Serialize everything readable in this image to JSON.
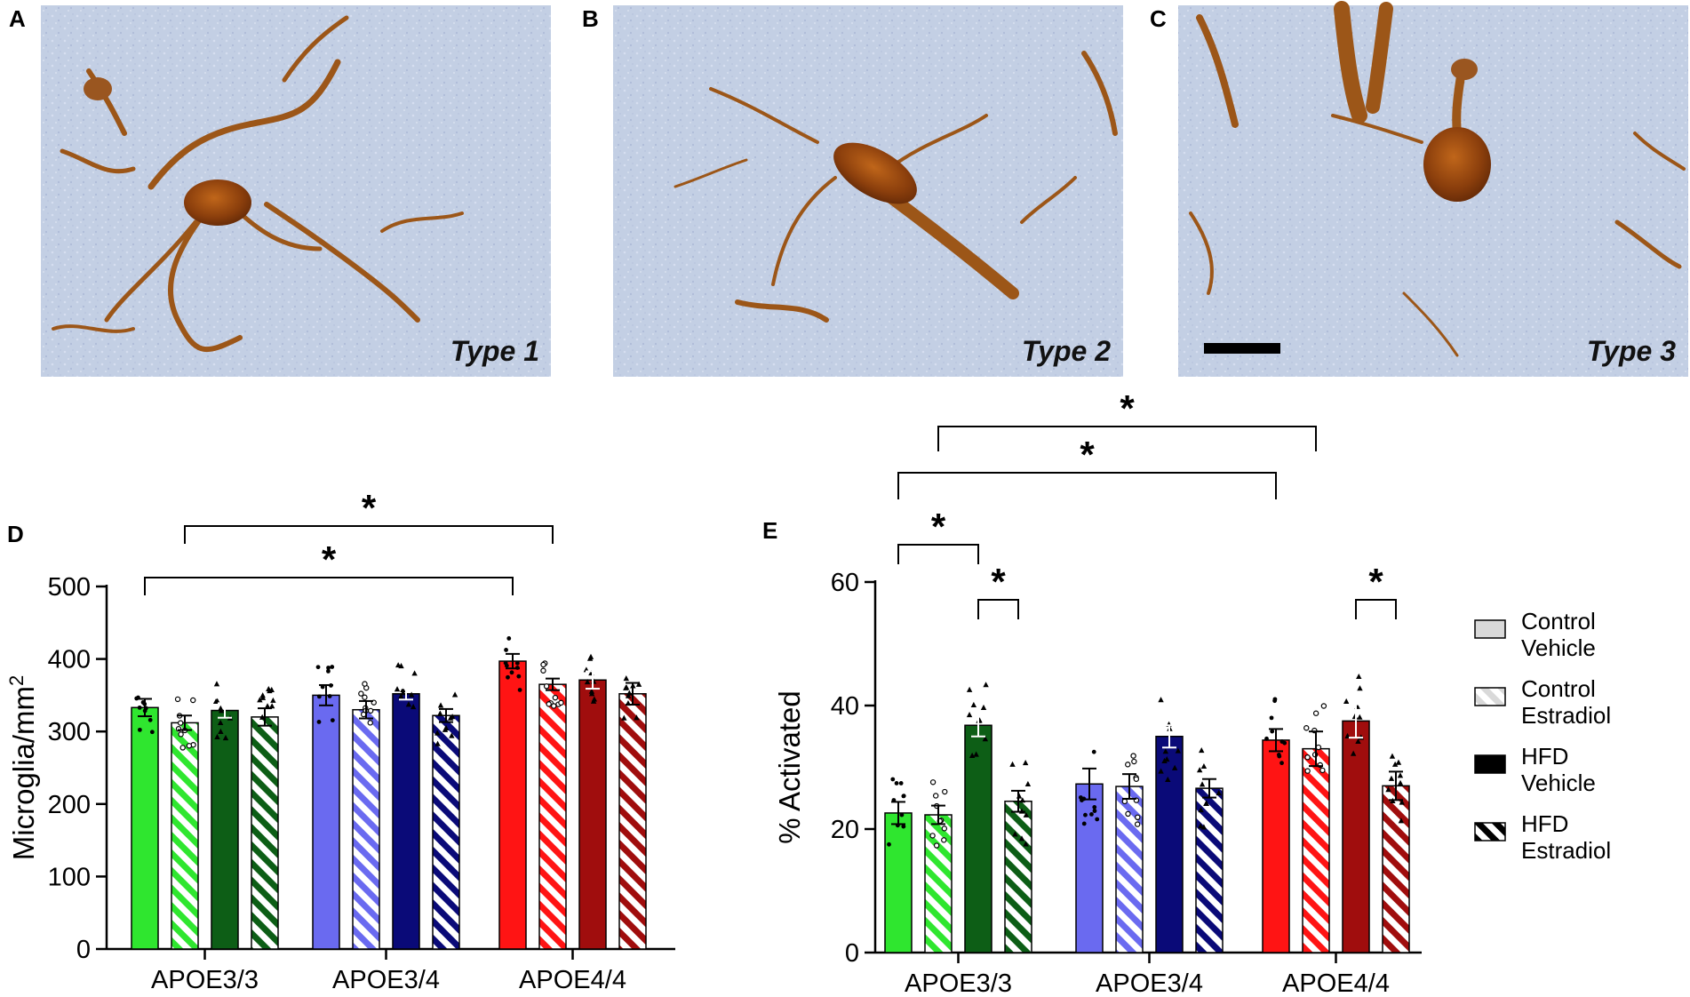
{
  "panels": {
    "micrographs": [
      {
        "letter": "A",
        "label": "Type 1"
      },
      {
        "letter": "B",
        "label": "Type 2"
      },
      {
        "letter": "C",
        "label": "Type 3"
      }
    ],
    "chart_letters": [
      "D",
      "E"
    ]
  },
  "colors": {
    "APOE3/3": {
      "light": "#2fe62f",
      "dark": "#0d5e16"
    },
    "APOE3/4": {
      "light": "#6a6af0",
      "dark": "#0a0a78"
    },
    "APOE4/4": {
      "light": "#ff1414",
      "dark": "#a00d0d"
    }
  },
  "legend": [
    {
      "line1": "Control",
      "line2": "Vehicle",
      "style": "light-gray"
    },
    {
      "line1": "Control",
      "line2": "Estradiol",
      "style": "light-hatched"
    },
    {
      "line1": "HFD",
      "line2": "Vehicle",
      "style": "black"
    },
    {
      "line1": "HFD",
      "line2": "Estradiol",
      "style": "black-hatched"
    }
  ],
  "chart_data": [
    {
      "panel": "D",
      "type": "bar",
      "ylabel": "Microglia/mm2",
      "ylim": [
        0,
        500
      ],
      "yticks": [
        0,
        100,
        200,
        300,
        400,
        500
      ],
      "categories": [
        "APOE3/3",
        "APOE3/4",
        "APOE4/4"
      ],
      "series": [
        {
          "name": "Control Vehicle",
          "values": [
            333,
            350,
            397
          ],
          "errors": [
            12,
            14,
            10
          ]
        },
        {
          "name": "Control Estradiol",
          "values": [
            312,
            330,
            365
          ],
          "errors": [
            10,
            12,
            8
          ]
        },
        {
          "name": "HFD Vehicle",
          "values": [
            329,
            352,
            371
          ],
          "errors": [
            10,
            8,
            12
          ]
        },
        {
          "name": "HFD Estradiol",
          "values": [
            320,
            322,
            352
          ],
          "errors": [
            12,
            9,
            15
          ]
        }
      ],
      "significance": [
        {
          "from": "APOE3/3 Control Vehicle",
          "to": "APOE4/4 Control Vehicle",
          "label": "*"
        },
        {
          "from": "APOE3/3 Control Estradiol",
          "to": "APOE4/4 Control Estradiol",
          "label": "*"
        }
      ]
    },
    {
      "panel": "E",
      "type": "bar",
      "ylabel": "% Activated",
      "ylim": [
        0,
        60
      ],
      "yticks": [
        0,
        20,
        40,
        60
      ],
      "categories": [
        "APOE3/3",
        "APOE3/4",
        "APOE4/4"
      ],
      "series": [
        {
          "name": "Control Vehicle",
          "values": [
            22.6,
            27.3,
            34.4
          ],
          "errors": [
            1.8,
            2.5,
            1.8
          ]
        },
        {
          "name": "Control Estradiol",
          "values": [
            22.3,
            26.9,
            33.0
          ],
          "errors": [
            1.5,
            2.0,
            2.8
          ]
        },
        {
          "name": "HFD Vehicle",
          "values": [
            36.8,
            35.0,
            37.5
          ],
          "errors": [
            1.8,
            1.8,
            2.7
          ]
        },
        {
          "name": "HFD Estradiol",
          "values": [
            24.5,
            26.6,
            27.0
          ],
          "errors": [
            1.7,
            1.5,
            2.3
          ]
        }
      ],
      "significance": [
        {
          "from": "APOE3/3 Control Vehicle",
          "to": "APOE3/3 HFD Vehicle",
          "label": "*"
        },
        {
          "from": "APOE3/3 HFD Vehicle",
          "to": "APOE3/3 HFD Estradiol",
          "label": "*"
        },
        {
          "from": "APOE3/3 Control Vehicle",
          "to": "APOE4/4 Control Vehicle",
          "label": "*"
        },
        {
          "from": "APOE3/3 Control Estradiol",
          "to": "APOE4/4 Control Estradiol",
          "label": "*"
        },
        {
          "from": "APOE4/4 HFD Vehicle",
          "to": "APOE4/4 HFD Estradiol",
          "label": "*"
        }
      ]
    }
  ]
}
